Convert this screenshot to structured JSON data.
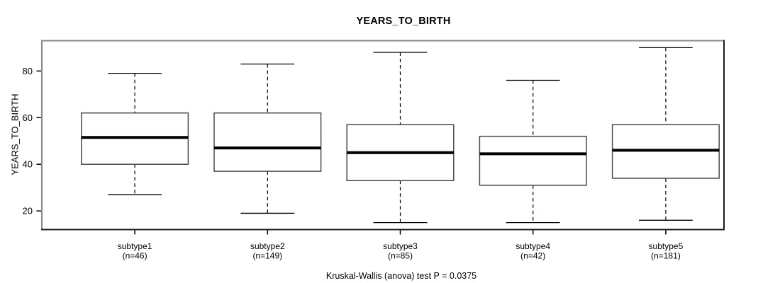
{
  "figure": {
    "title": "YEARS_TO_BIRTH",
    "y_axis_label": "YEARS_TO_BIRTH",
    "caption": "Kruskal-Wallis (anova) test P = 0.0375"
  },
  "chart_data": {
    "type": "boxplot",
    "title": "YEARS_TO_BIRTH",
    "xlabel": "",
    "ylabel": "YEARS_TO_BIRTH",
    "footnote": "Kruskal-Wallis (anova) test P = 0.0375",
    "ylim": [
      12,
      93
    ],
    "yticks": [
      20,
      40,
      60,
      80
    ],
    "grid": false,
    "legend": "none",
    "categories": [
      "subtype1",
      "subtype2",
      "subtype3",
      "subtype4",
      "subtype5"
    ],
    "count_labels": [
      "(n=46)",
      "(n=149)",
      "(n=85)",
      "(n=42)",
      "(n=181)"
    ],
    "series": [
      {
        "name": "subtype1",
        "n": 46,
        "whisker_low": 27,
        "q1": 40,
        "median": 51.5,
        "q3": 62,
        "whisker_high": 79
      },
      {
        "name": "subtype2",
        "n": 149,
        "whisker_low": 19,
        "q1": 37,
        "median": 47,
        "q3": 62,
        "whisker_high": 83
      },
      {
        "name": "subtype3",
        "n": 85,
        "whisker_low": 15,
        "q1": 33,
        "median": 45,
        "q3": 57,
        "whisker_high": 88
      },
      {
        "name": "subtype4",
        "n": 42,
        "whisker_low": 15,
        "q1": 31,
        "median": 44.5,
        "q3": 52,
        "whisker_high": 76
      },
      {
        "name": "subtype5",
        "n": 181,
        "whisker_low": 16,
        "q1": 34,
        "median": 46,
        "q3": 57,
        "whisker_high": 90
      }
    ],
    "colors": {
      "background": "#ffffff",
      "box_fill": "#ffffff",
      "box_stroke": "#4a4a4a",
      "median": "#000000",
      "whisker": "#000000",
      "frame_top_left": "#878787",
      "frame_bottom_right": "#1c1c1c",
      "text": "#000000"
    }
  }
}
